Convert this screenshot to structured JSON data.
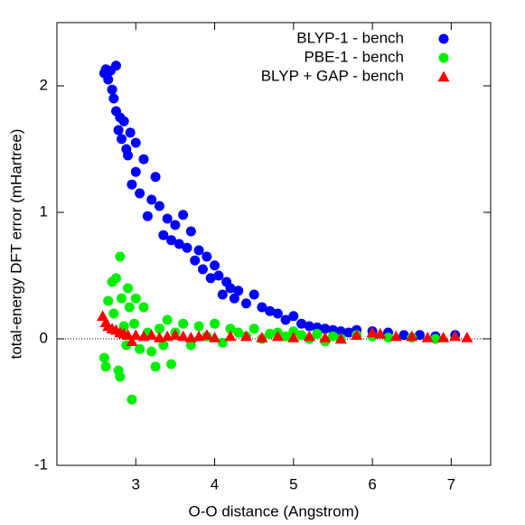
{
  "chart_data": {
    "type": "scatter",
    "x_label": "O-O distance (Angstrom)",
    "y_label": "total-energy DFT error (mHartree)",
    "xlim": [
      2.0,
      7.5
    ],
    "ylim": [
      -1,
      2.5
    ],
    "xticks": [
      3,
      4,
      5,
      6,
      7
    ],
    "yticks": [
      -1,
      0,
      1,
      2
    ],
    "zero_line": true,
    "legend": "top-right",
    "series": [
      {
        "name": "BLYP-1 - bench",
        "color": "#0000ff",
        "marker": "circle",
        "x": [
          2.6,
          2.62,
          2.65,
          2.68,
          2.7,
          2.72,
          2.75,
          2.75,
          2.78,
          2.8,
          2.82,
          2.85,
          2.88,
          2.9,
          2.93,
          2.95,
          3.0,
          3.0,
          3.05,
          3.1,
          3.15,
          3.2,
          3.25,
          3.3,
          3.35,
          3.4,
          3.45,
          3.5,
          3.55,
          3.6,
          3.65,
          3.7,
          3.75,
          3.8,
          3.85,
          3.9,
          3.95,
          4.0,
          4.05,
          4.1,
          4.15,
          4.2,
          4.25,
          4.3,
          4.4,
          4.5,
          4.6,
          4.7,
          4.8,
          4.9,
          5.0,
          5.1,
          5.2,
          5.3,
          5.4,
          5.5,
          5.6,
          5.7,
          5.8,
          6.0,
          6.2,
          6.4,
          6.6,
          6.8,
          7.05
        ],
        "values": [
          2.1,
          2.13,
          2.05,
          2.12,
          1.97,
          1.9,
          2.16,
          1.8,
          1.65,
          1.75,
          1.58,
          1.72,
          1.5,
          1.45,
          1.63,
          1.22,
          1.55,
          1.32,
          1.15,
          1.42,
          0.97,
          1.1,
          1.28,
          1.05,
          0.82,
          0.95,
          0.78,
          0.9,
          0.75,
          0.98,
          0.72,
          0.85,
          0.62,
          0.7,
          0.55,
          0.65,
          0.48,
          0.58,
          0.5,
          0.35,
          0.45,
          0.4,
          0.32,
          0.38,
          0.28,
          0.35,
          0.25,
          0.22,
          0.2,
          0.15,
          0.18,
          0.12,
          0.1,
          0.09,
          0.08,
          0.07,
          0.06,
          0.05,
          0.07,
          0.06,
          0.05,
          0.03,
          0.03,
          0.02,
          0.03
        ]
      },
      {
        "name": "PBE-1 - bench",
        "color": "#00ee00",
        "marker": "circle",
        "x": [
          2.6,
          2.62,
          2.65,
          2.7,
          2.72,
          2.75,
          2.78,
          2.8,
          2.8,
          2.82,
          2.85,
          2.88,
          2.9,
          2.92,
          2.95,
          2.98,
          3.0,
          3.05,
          3.1,
          3.15,
          3.2,
          3.25,
          3.3,
          3.35,
          3.4,
          3.45,
          3.5,
          3.6,
          3.7,
          3.8,
          3.9,
          4.0,
          4.1,
          4.2,
          4.3,
          4.4,
          4.5,
          4.6,
          4.7,
          4.8,
          4.9,
          5.0,
          5.1,
          5.2,
          5.3,
          5.4,
          5.5,
          5.6,
          5.8,
          6.0,
          6.2,
          6.5,
          6.8
        ],
        "values": [
          -0.15,
          -0.22,
          0.3,
          0.45,
          0.2,
          0.48,
          -0.25,
          0.65,
          -0.3,
          0.32,
          0.1,
          -0.05,
          0.4,
          0.25,
          -0.48,
          0.12,
          0.32,
          -0.08,
          0.25,
          0.05,
          -0.1,
          -0.22,
          0.08,
          -0.05,
          0.15,
          -0.2,
          0.05,
          0.12,
          -0.05,
          0.1,
          0.02,
          0.12,
          -0.03,
          0.08,
          0.05,
          0.02,
          0.08,
          0.0,
          0.04,
          0.05,
          0.02,
          0.06,
          0.03,
          0.0,
          0.04,
          -0.02,
          0.02,
          0.0,
          0.03,
          0.02,
          0.01,
          0.01,
          0.0
        ]
      },
      {
        "name": "BLYP + GAP - bench",
        "color": "#ff0000",
        "marker": "triangle",
        "x": [
          2.58,
          2.62,
          2.65,
          2.7,
          2.75,
          2.8,
          2.85,
          2.9,
          2.95,
          3.0,
          3.1,
          3.2,
          3.3,
          3.4,
          3.5,
          3.6,
          3.7,
          3.8,
          3.9,
          4.0,
          4.2,
          4.4,
          4.6,
          4.8,
          5.0,
          5.2,
          5.4,
          5.6,
          5.8,
          6.0,
          6.1,
          6.3,
          6.5,
          6.7,
          6.9,
          7.05,
          7.2
        ],
        "values": [
          0.18,
          0.13,
          0.1,
          0.08,
          0.07,
          0.05,
          0.04,
          0.03,
          -0.02,
          0.03,
          0.02,
          0.03,
          0.01,
          0.02,
          0.03,
          0.02,
          0.01,
          0.02,
          0.03,
          0.01,
          0.02,
          0.02,
          0.01,
          0.02,
          0.01,
          0.02,
          0.01,
          0.0,
          0.03,
          0.05,
          0.04,
          0.02,
          0.02,
          0.01,
          0.01,
          0.02,
          0.01
        ]
      }
    ]
  }
}
